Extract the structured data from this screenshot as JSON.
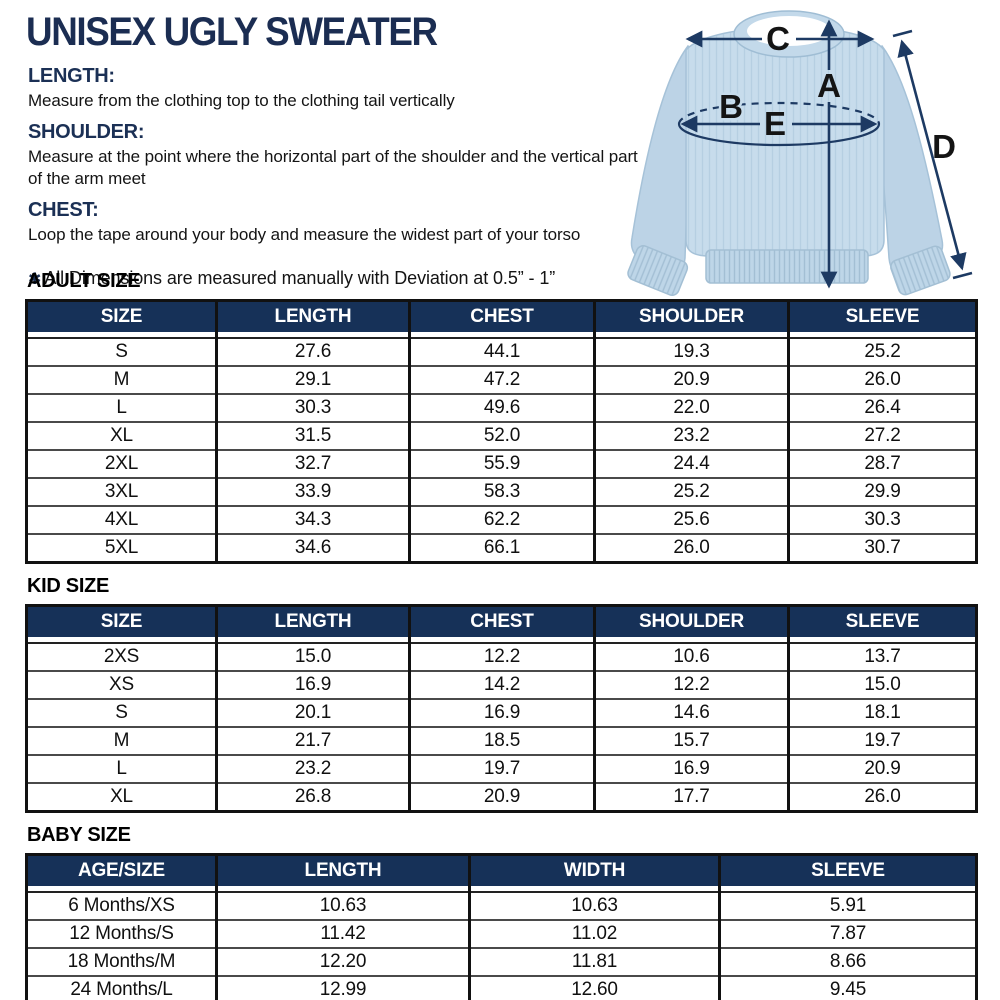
{
  "title": "UNISEX UGLY SWEATER",
  "sections": [
    {
      "heading": "LENGTH:",
      "body": "Measure from the clothing top to the clothing tail vertically"
    },
    {
      "heading": "SHOULDER:",
      "body": "Measure at the point where the horizontal part of the shoulder and the vertical part of the arm meet"
    },
    {
      "heading": "CHEST:",
      "body": "Loop the tape around your body and measure the widest part of your torso"
    }
  ],
  "note": {
    "symbol": "✱",
    "text": "All Dimensions are measured manually with Deviation at 0.5” - 1”"
  },
  "diagram": {
    "labels": {
      "a": "A",
      "b": "B",
      "c": "C",
      "d": "D",
      "e": "E"
    }
  },
  "tables": [
    {
      "title": "ADULT SIZE",
      "headers": [
        "SIZE",
        "LENGTH",
        "CHEST",
        "SHOULDER",
        "SLEEVE"
      ],
      "rows": [
        [
          "S",
          "27.6",
          "44.1",
          "19.3",
          "25.2"
        ],
        [
          "M",
          "29.1",
          "47.2",
          "20.9",
          "26.0"
        ],
        [
          "L",
          "30.3",
          "49.6",
          "22.0",
          "26.4"
        ],
        [
          "XL",
          "31.5",
          "52.0",
          "23.2",
          "27.2"
        ],
        [
          "2XL",
          "32.7",
          "55.9",
          "24.4",
          "28.7"
        ],
        [
          "3XL",
          "33.9",
          "58.3",
          "25.2",
          "29.9"
        ],
        [
          "4XL",
          "34.3",
          "62.2",
          "25.6",
          "30.3"
        ],
        [
          "5XL",
          "34.6",
          "66.1",
          "26.0",
          "30.7"
        ]
      ]
    },
    {
      "title": "KID SIZE",
      "headers": [
        "SIZE",
        "LENGTH",
        "CHEST",
        "SHOULDER",
        "SLEEVE"
      ],
      "rows": [
        [
          "2XS",
          "15.0",
          "12.2",
          "10.6",
          "13.7"
        ],
        [
          "XS",
          "16.9",
          "14.2",
          "12.2",
          "15.0"
        ],
        [
          "S",
          "20.1",
          "16.9",
          "14.6",
          "18.1"
        ],
        [
          "M",
          "21.7",
          "18.5",
          "15.7",
          "19.7"
        ],
        [
          "L",
          "23.2",
          "19.7",
          "16.9",
          "20.9"
        ],
        [
          "XL",
          "26.8",
          "20.9",
          "17.7",
          "26.0"
        ]
      ]
    },
    {
      "title": "BABY SIZE",
      "headers": [
        "AGE/SIZE",
        "LENGTH",
        "WIDTH",
        "SLEEVE"
      ],
      "rows": [
        [
          "6 Months/XS",
          "10.63",
          "10.63",
          "5.91"
        ],
        [
          "12 Months/S",
          "11.42",
          "11.02",
          "7.87"
        ],
        [
          "18 Months/M",
          "12.20",
          "11.81",
          "8.66"
        ],
        [
          "24 Months/L",
          "12.99",
          "12.60",
          "9.45"
        ]
      ]
    }
  ],
  "colors": {
    "heading_navy": "#1b2d52",
    "table_header_bg": "#163158",
    "arrow_navy": "#1d3a63",
    "sweater_body": "#c7dcec",
    "sweater_shade": "#b9d1e4"
  }
}
